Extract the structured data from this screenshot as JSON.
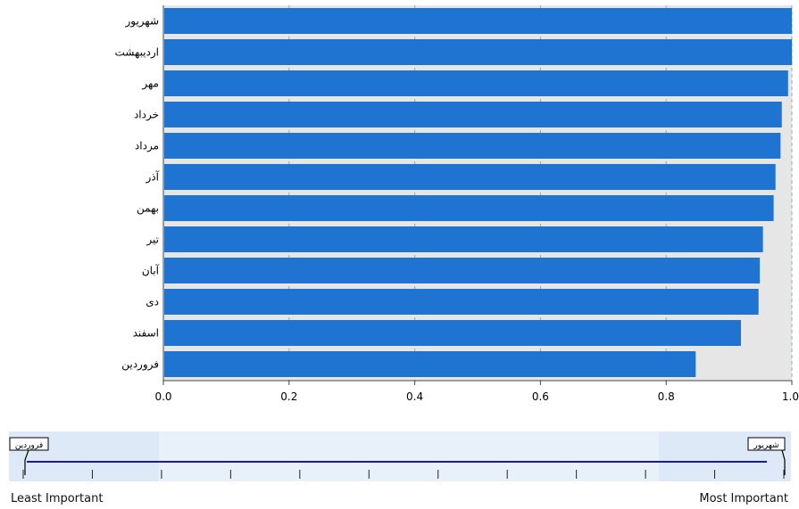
{
  "chart_data": {
    "type": "bar",
    "orientation": "horizontal",
    "categories": [
      "شهریور",
      "اردیبهشت",
      "مهر",
      "خرداد",
      "مرداد",
      "آذر",
      "بهمن",
      "تیر",
      "آبان",
      "دی",
      "اسفند",
      "فروردین"
    ],
    "values": [
      1.0,
      1.0,
      0.994,
      0.984,
      0.982,
      0.974,
      0.971,
      0.954,
      0.949,
      0.947,
      0.919,
      0.847
    ],
    "xlim": [
      0,
      1.0
    ],
    "xticks": [
      "0.0",
      "0.2",
      "0.4",
      "0.6",
      "0.8",
      "1.0"
    ],
    "xtick_values": [
      0,
      0.2,
      0.4,
      0.6,
      0.8,
      1.0
    ],
    "grid": "vertical-dashed",
    "bar_color": "#1f74d2",
    "plot_background": "#e6e6e6"
  },
  "slider": {
    "left_label": "فروردین",
    "right_label": "شهریور",
    "least_label": "Least Important",
    "most_label": "Most Important",
    "tick_count": 12
  },
  "colors": {
    "slider_band": "#dde9f7",
    "slider_line": "#1a1aa0"
  }
}
